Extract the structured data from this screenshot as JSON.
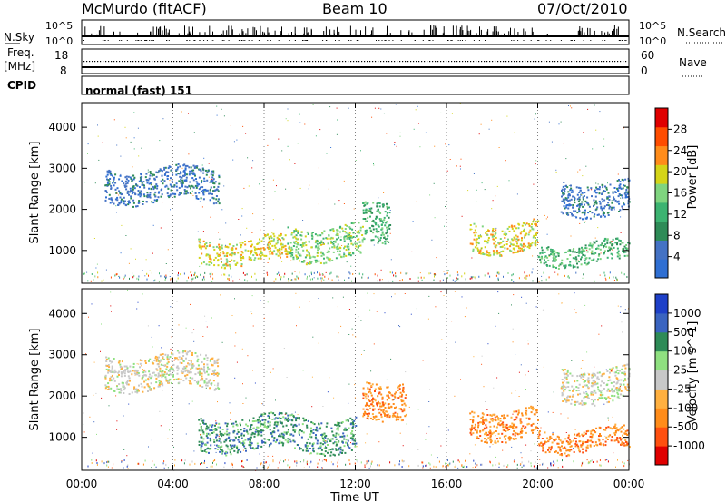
{
  "header": {
    "station": "McMurdo (fitACF)",
    "beam": "Beam 10",
    "date": "07/Oct/2010"
  },
  "noise_panel": {
    "left_label": "N.Sky",
    "right_label": "N.Search",
    "left_ticks": [
      "10^5",
      "10^0"
    ],
    "right_ticks": [
      "10^5",
      "10^0"
    ]
  },
  "freq_panel": {
    "left_label_line1": "Freq.",
    "left_label_line2": "[MHz]",
    "left_ticks": [
      "18",
      "8"
    ],
    "right_label": "Nave",
    "right_ticks": [
      "60",
      "0"
    ]
  },
  "cpid_panel": {
    "label": "CPID",
    "value": "normal (fast) 151"
  },
  "colors": {
    "power_scale": [
      "#2f6fd3",
      "#4472c4",
      "#2e8b57",
      "#3cb371",
      "#7fd47f",
      "#d4d418",
      "#ff8c1a",
      "#ff4d00",
      "#e00000"
    ],
    "velocity_scale": [
      "#e00000",
      "#ff5010",
      "#ff8c1a",
      "#ffb040",
      "#c8c8c8",
      "#8fe080",
      "#2e8b57",
      "#3a64c0",
      "#1e40c8"
    ]
  },
  "chart_data": [
    {
      "type": "heatmap",
      "title": "",
      "xlabel": "Time UT",
      "ylabel": "Slant Range [km]",
      "x_ticks": [
        "00:00",
        "04:00",
        "08:00",
        "12:00",
        "16:00",
        "20:00",
        "00:00"
      ],
      "y_ticks": [
        1000,
        2000,
        3000,
        4000
      ],
      "ylim": [
        200,
        4600
      ],
      "colorbar": {
        "label": "Power [dB]",
        "ticks": [
          4,
          8,
          12,
          16,
          20,
          24,
          28
        ],
        "range": [
          0,
          32
        ]
      },
      "grid": true,
      "scatter_regions": [
        {
          "t_start": 5.1,
          "t_end": 9.0,
          "range_low": 700,
          "range_high": 1300,
          "level": 20
        },
        {
          "t_start": 9.0,
          "t_end": 12.3,
          "range_low": 800,
          "range_high": 1600,
          "level": 16
        },
        {
          "t_start": 12.3,
          "t_end": 13.5,
          "range_low": 1300,
          "range_high": 2300,
          "level": 14
        },
        {
          "t_start": 17.0,
          "t_end": 20.0,
          "range_low": 1000,
          "range_high": 1700,
          "level": 18
        },
        {
          "t_start": 20.0,
          "t_end": 24.0,
          "range_low": 700,
          "range_high": 1200,
          "level": 12
        },
        {
          "t_start": 1.0,
          "t_end": 6.0,
          "range_low": 2200,
          "range_high": 3000,
          "level": 6
        },
        {
          "t_start": 21.0,
          "t_end": 24.0,
          "range_low": 1900,
          "range_high": 2700,
          "level": 7
        }
      ]
    },
    {
      "type": "heatmap",
      "title": "",
      "xlabel": "Time UT",
      "ylabel": "Slant Range [km]",
      "x_ticks": [
        "00:00",
        "04:00",
        "08:00",
        "12:00",
        "16:00",
        "20:00",
        "00:00"
      ],
      "y_ticks": [
        1000,
        2000,
        3000,
        4000
      ],
      "ylim": [
        200,
        4600
      ],
      "colorbar": {
        "label": "Velocity [m s^-1]",
        "ticks": [
          1000,
          500,
          100,
          25,
          -25,
          -100,
          -500,
          -1000
        ]
      },
      "grid": true,
      "scatter_regions": [
        {
          "t_start": 5.1,
          "t_end": 12.0,
          "range_low": 700,
          "range_high": 1500,
          "velocity": 300
        },
        {
          "t_start": 12.3,
          "t_end": 14.2,
          "range_low": 1500,
          "range_high": 2400,
          "velocity": -150
        },
        {
          "t_start": 17.0,
          "t_end": 20.0,
          "range_low": 1000,
          "range_high": 1700,
          "velocity": -150
        },
        {
          "t_start": 20.0,
          "t_end": 24.0,
          "range_low": 700,
          "range_high": 1200,
          "velocity": -200
        },
        {
          "t_start": 1.0,
          "t_end": 6.0,
          "range_low": 2200,
          "range_high": 3000,
          "velocity": 0
        },
        {
          "t_start": 21.0,
          "t_end": 24.0,
          "range_low": 1900,
          "range_high": 2700,
          "velocity": 0
        }
      ]
    }
  ]
}
